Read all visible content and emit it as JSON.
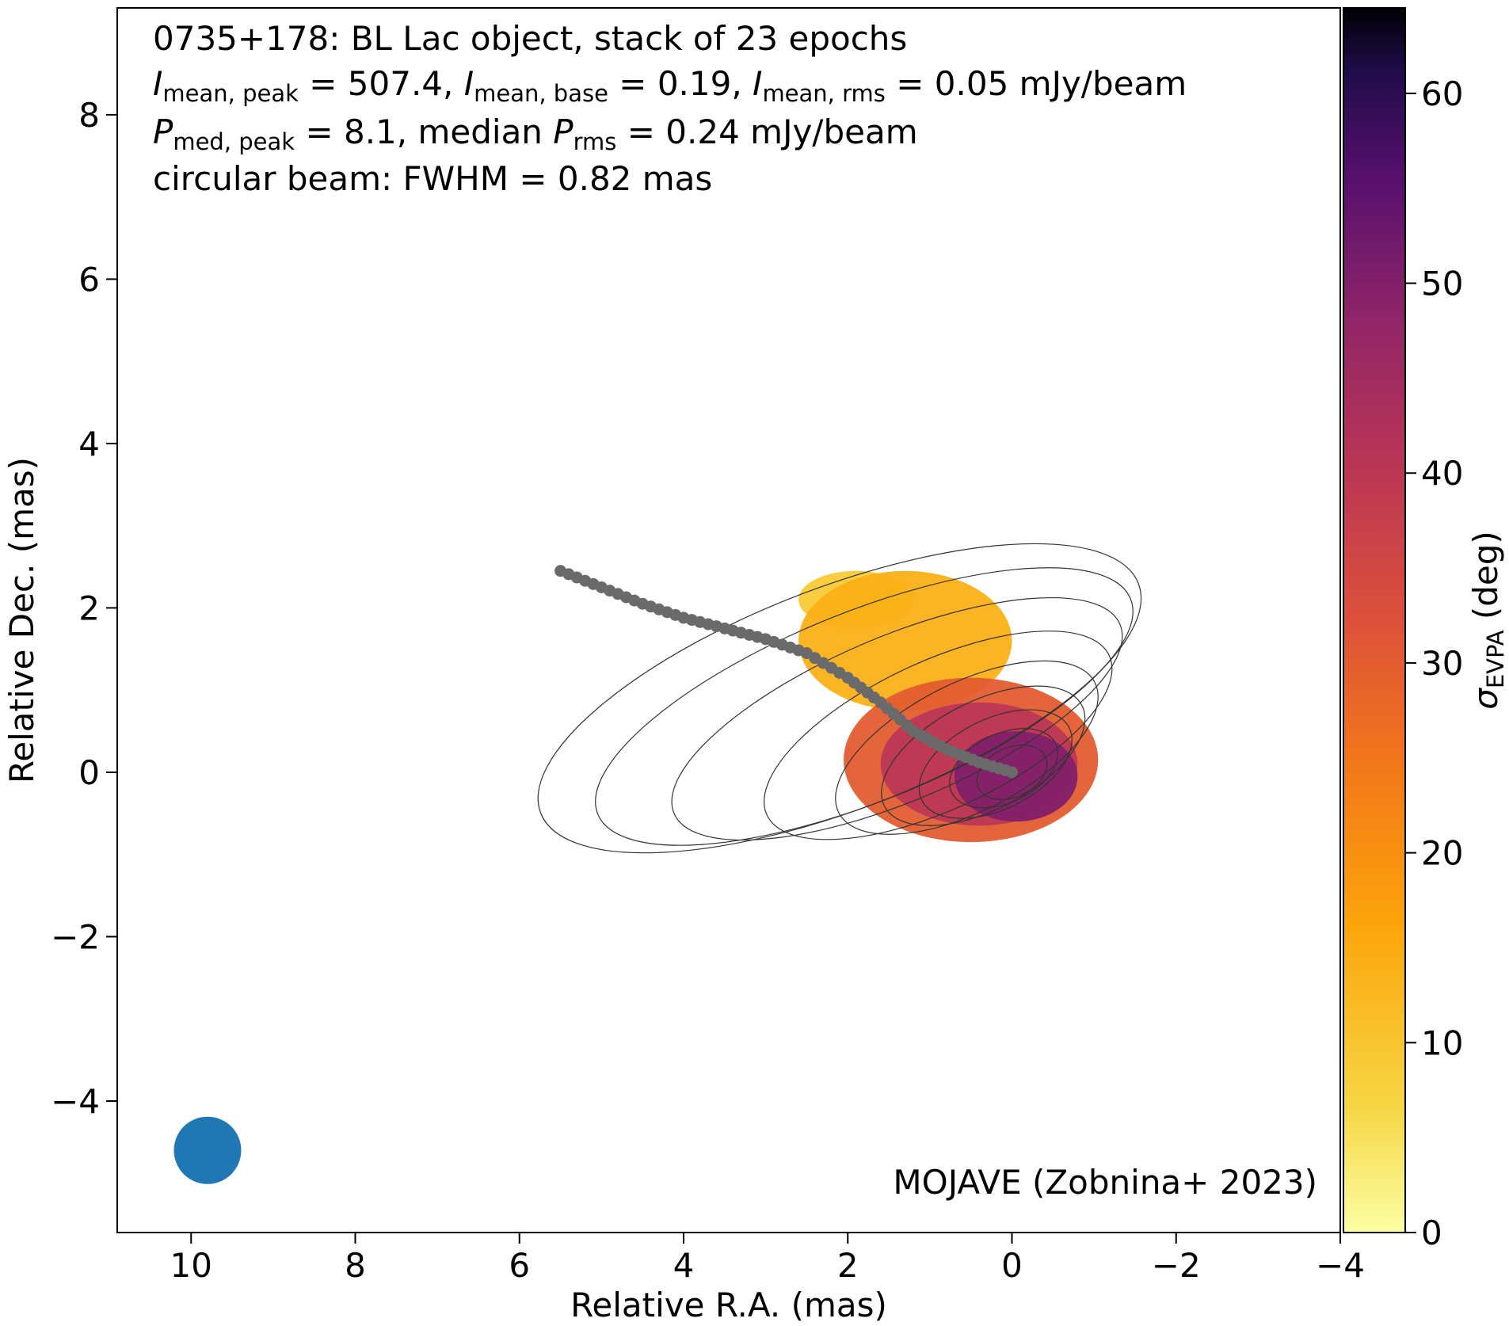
{
  "chart_data": {
    "type": "heatmap",
    "annotation": {
      "line1": "0735+178: BL Lac object, stack of 23 epochs",
      "line2_parts": [
        {
          "v": "I",
          "s": "italic"
        },
        {
          "v": "mean, peak",
          "s": "sub"
        },
        {
          "v": " = 507.4, ",
          "s": "normal"
        },
        {
          "v": "I",
          "s": "italic"
        },
        {
          "v": "mean, base",
          "s": "sub"
        },
        {
          "v": " = 0.19, ",
          "s": "normal"
        },
        {
          "v": "I",
          "s": "italic"
        },
        {
          "v": "mean, rms",
          "s": "sub"
        },
        {
          "v": " = 0.05 mJy/beam",
          "s": "normal"
        }
      ],
      "line3_parts": [
        {
          "v": "P",
          "s": "italic"
        },
        {
          "v": "med, peak",
          "s": "sub"
        },
        {
          "v": " = 8.1, median ",
          "s": "normal"
        },
        {
          "v": "P",
          "s": "italic"
        },
        {
          "v": "rms",
          "s": "sub"
        },
        {
          "v": " = 0.24 mJy/beam",
          "s": "normal"
        }
      ],
      "line4": "circular beam: FWHM = 0.82 mas",
      "credit": "MOJAVE (Zobnina+ 2023)"
    },
    "xlabel": "Relative R.A. (mas)",
    "ylabel": "Relative Dec. (mas)",
    "xlim": [
      10.9,
      -4.0
    ],
    "ylim": [
      -5.6,
      9.3
    ],
    "xticks": [
      10,
      8,
      6,
      4,
      2,
      0,
      -2,
      -4
    ],
    "yticks": [
      8,
      6,
      4,
      2,
      0,
      -2,
      -4
    ],
    "colorbar": {
      "label_main": "σ",
      "label_sub": "EVPA",
      "label_unit": " (deg)",
      "range": [
        0,
        64.5
      ],
      "ticks": [
        0,
        10,
        20,
        30,
        40,
        50,
        60
      ],
      "colormap": "inferno_r"
    },
    "beam": {
      "fwhm_mas": 0.82,
      "center": [
        9.8,
        -4.6
      ],
      "color": "#1f77b4"
    },
    "ridge_line": {
      "color": "#6a6a6a",
      "points": [
        [
          5.5,
          2.45
        ],
        [
          5.0,
          2.25
        ],
        [
          4.5,
          2.05
        ],
        [
          4.0,
          1.88
        ],
        [
          3.5,
          1.75
        ],
        [
          3.0,
          1.62
        ],
        [
          2.5,
          1.45
        ],
        [
          2.0,
          1.15
        ],
        [
          1.6,
          0.85
        ],
        [
          1.2,
          0.5
        ],
        [
          0.8,
          0.28
        ],
        [
          0.4,
          0.12
        ],
        [
          0.0,
          0.0
        ]
      ]
    },
    "contours": {
      "levels_note": "Stokes I contour levels",
      "positive": [
        {
          "cx": 0.0,
          "cy": 0.0,
          "rx": 0.45,
          "ry": 0.3,
          "pa": -25
        },
        {
          "cx": 0.1,
          "cy": 0.05,
          "rx": 0.7,
          "ry": 0.42,
          "pa": -25
        },
        {
          "cx": 0.2,
          "cy": 0.1,
          "rx": 1.0,
          "ry": 0.55,
          "pa": -26
        },
        {
          "cx": 0.35,
          "cy": 0.2,
          "rx": 1.35,
          "ry": 0.66,
          "pa": -27
        },
        {
          "cx": 0.55,
          "cy": 0.3,
          "rx": 1.75,
          "ry": 0.78,
          "pa": -27
        },
        {
          "cx": 0.9,
          "cy": 0.45,
          "rx": 2.3,
          "ry": 0.9,
          "pa": -25
        },
        {
          "cx": 1.4,
          "cy": 0.65,
          "rx": 2.95,
          "ry": 1.0,
          "pa": -23
        },
        {
          "cx": 1.8,
          "cy": 0.8,
          "rx": 3.5,
          "ry": 1.15,
          "pa": -22
        },
        {
          "cx": 2.1,
          "cy": 0.9,
          "rx": 3.9,
          "ry": 1.35,
          "pa": -21
        }
      ]
    },
    "evpa_regions": [
      {
        "name": "core",
        "cx": -0.05,
        "cy": -0.05,
        "rx": 0.75,
        "ry": 0.55,
        "value": 50
      },
      {
        "name": "inner",
        "cx": 0.4,
        "cy": 0.1,
        "rx": 1.2,
        "ry": 0.75,
        "value": 40
      },
      {
        "name": "mid",
        "cx": 0.5,
        "cy": 0.15,
        "rx": 1.55,
        "ry": 1.0,
        "value": 30
      },
      {
        "name": "upper-jet",
        "cx": 1.3,
        "cy": 1.6,
        "rx": 1.3,
        "ry": 0.85,
        "value": 14
      },
      {
        "name": "outer-jet",
        "cx": 1.9,
        "cy": 2.1,
        "rx": 0.7,
        "ry": 0.35,
        "value": 9
      }
    ]
  }
}
